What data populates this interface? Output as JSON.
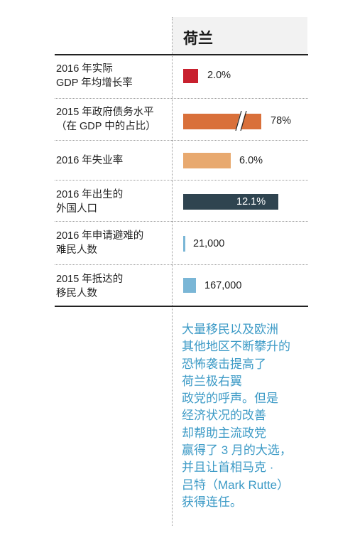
{
  "header": {
    "country": "荷兰"
  },
  "chart_data": {
    "type": "table",
    "columns": [
      "荷兰"
    ],
    "rows": [
      {
        "label_lines": [
          "2016 年实际",
          "GDP 年均增长率"
        ],
        "value": 2.0,
        "display": "2.0%",
        "color": "#c8202e"
      },
      {
        "label_lines": [
          "2015 年政府债务水平",
          "（在 GDP 中的占比）"
        ],
        "value": 78,
        "display": "78%",
        "color": "#d9703a",
        "axis_break": true
      },
      {
        "label_lines": [
          "2016 年失业率"
        ],
        "value": 6.0,
        "display": "6.0%",
        "color": "#e8a96f"
      },
      {
        "label_lines": [
          "2016 年出生的",
          "外国人口"
        ],
        "value": 12.1,
        "display": "12.1%",
        "color": "#2f4450"
      },
      {
        "label_lines": [
          "2016 年申请避难的",
          "难民人数"
        ],
        "value": 21000,
        "display": "21,000",
        "color": "#7ab6d6"
      },
      {
        "label_lines": [
          "2015 年抵达的",
          "移民人数"
        ],
        "value": 167000,
        "display": "167,000",
        "color": "#7ab6d6"
      }
    ]
  },
  "note": {
    "lines": [
      "大量移民以及欧洲",
      "其他地区不断攀升的",
      "恐怖袭击提高了",
      "荷兰极右翼",
      "政党的呼声。但是",
      "经济状况的改善",
      "却帮助主流政党",
      "赢得了 3 月的大选，",
      "并且让首相马克 ·",
      "吕特（Mark Rutte）",
      "获得连任。"
    ]
  }
}
